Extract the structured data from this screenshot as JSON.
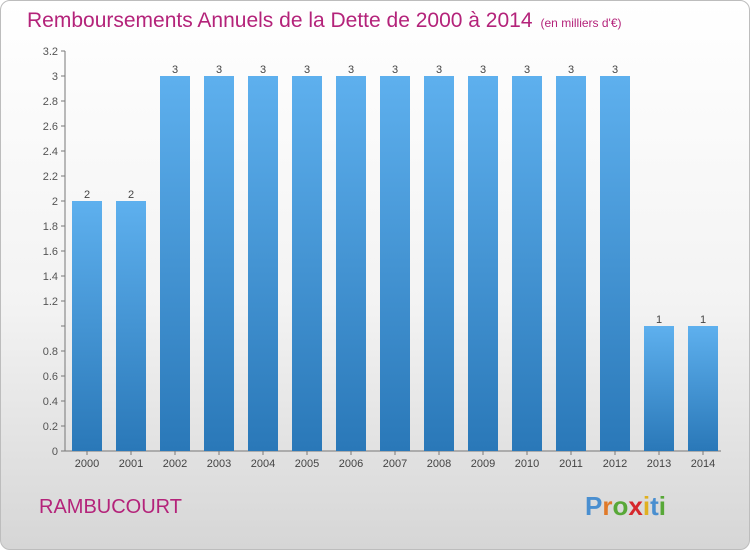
{
  "header": {
    "title": "Remboursements Annuels de la Dette de 2000 à 2014",
    "unit": "(en milliers d'€)"
  },
  "footer": {
    "commune": "RAMBUCOURT",
    "brand": "Proxiti"
  },
  "colors": {
    "title": "#b4237a",
    "bar_top": "#5eb0ee",
    "bar_bottom": "#2a78b8",
    "axis": "#777777"
  },
  "chart_data": {
    "type": "bar",
    "categories": [
      "2000",
      "2001",
      "2002",
      "2003",
      "2004",
      "2005",
      "2006",
      "2007",
      "2008",
      "2009",
      "2010",
      "2011",
      "2012",
      "2013",
      "2014"
    ],
    "values": [
      2,
      2,
      3,
      3,
      3,
      3,
      3,
      3,
      3,
      3,
      3,
      3,
      3,
      1,
      1
    ],
    "data_labels": [
      "2",
      "2",
      "3",
      "3",
      "3",
      "3",
      "3",
      "3",
      "3",
      "3",
      "3",
      "3",
      "3",
      "1",
      "1"
    ],
    "yticks": [
      0,
      0.2,
      0.4,
      0.6,
      0.8,
      1,
      1.2,
      1.4,
      1.6,
      1.8,
      2,
      2.2,
      2.4,
      2.6,
      2.8,
      3,
      3.2
    ],
    "ytick_labels": [
      "0",
      "0.2",
      "0.4",
      "0.6",
      "0.8",
      "",
      "1.2",
      "1.4",
      "1.6",
      "1.8",
      "2",
      "2.2",
      "2.4",
      "2.6",
      "2.8",
      "3",
      "3.2"
    ],
    "ylim": [
      0,
      3.2
    ],
    "grid": false
  }
}
